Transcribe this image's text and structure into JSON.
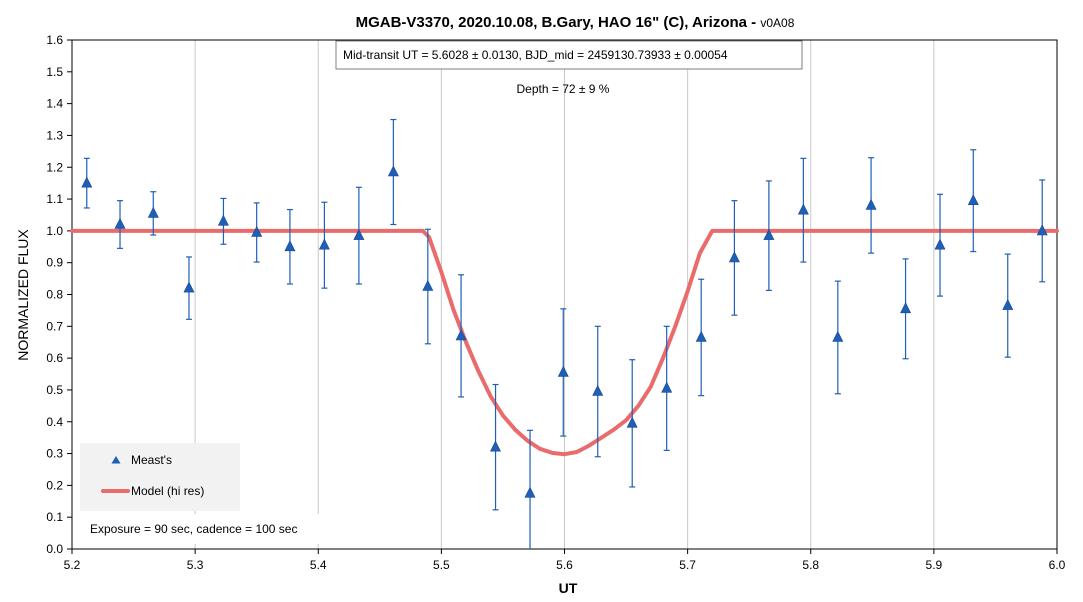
{
  "chart_data": {
    "type": "scatter",
    "title": "MGAB-V3370, 2020.10.08, B.Gary, HAO 16\" (C), Arizona - ",
    "title_version": "v0A08",
    "xlabel": "UT",
    "ylabel": "NORMALIZED FLUX",
    "xlim": [
      5.2,
      6.0
    ],
    "ylim": [
      0.0,
      1.6
    ],
    "x_ticks": [
      "5.2",
      "5.3",
      "5.4",
      "5.5",
      "5.6",
      "5.7",
      "5.8",
      "5.9",
      "6.0"
    ],
    "y_ticks": [
      "0.0",
      "0.1",
      "0.2",
      "0.3",
      "0.4",
      "0.5",
      "0.6",
      "0.7",
      "0.8",
      "0.9",
      "1.0",
      "1.1",
      "1.2",
      "1.3",
      "1.4",
      "1.5",
      "1.6"
    ],
    "grid": "vertical",
    "legend_position": "bottom-left",
    "annotations": {
      "transit": "Mid-transit UT = 5.6028 ± 0.0130, BJD_mid = 2459130.73933 ± 0.00054",
      "depth": "Depth = 72 ± 9 %",
      "exposure": "Exposure = 90 sec, cadence = 100 sec"
    },
    "series": [
      {
        "name": "Meast's",
        "kind": "scatter-errorbar",
        "color": "#1f5fb4",
        "marker": "triangle",
        "points": [
          {
            "x": 5.212,
            "y": 1.15,
            "err": 0.078
          },
          {
            "x": 5.239,
            "y": 1.02,
            "err": 0.075
          },
          {
            "x": 5.266,
            "y": 1.055,
            "err": 0.068
          },
          {
            "x": 5.295,
            "y": 0.82,
            "err": 0.098
          },
          {
            "x": 5.323,
            "y": 1.03,
            "err": 0.072
          },
          {
            "x": 5.35,
            "y": 0.995,
            "err": 0.093
          },
          {
            "x": 5.377,
            "y": 0.95,
            "err": 0.117
          },
          {
            "x": 5.405,
            "y": 0.955,
            "err": 0.135
          },
          {
            "x": 5.433,
            "y": 0.985,
            "err": 0.152
          },
          {
            "x": 5.461,
            "y": 1.185,
            "err": 0.165
          },
          {
            "x": 5.489,
            "y": 0.825,
            "err": 0.18
          },
          {
            "x": 5.516,
            "y": 0.67,
            "err": 0.192
          },
          {
            "x": 5.544,
            "y": 0.32,
            "err": 0.197
          },
          {
            "x": 5.572,
            "y": 0.175,
            "err": 0.198
          },
          {
            "x": 5.599,
            "y": 0.555,
            "err": 0.2
          },
          {
            "x": 5.627,
            "y": 0.495,
            "err": 0.205
          },
          {
            "x": 5.655,
            "y": 0.395,
            "err": 0.2
          },
          {
            "x": 5.683,
            "y": 0.505,
            "err": 0.195
          },
          {
            "x": 5.711,
            "y": 0.665,
            "err": 0.183
          },
          {
            "x": 5.738,
            "y": 0.915,
            "err": 0.18
          },
          {
            "x": 5.766,
            "y": 0.985,
            "err": 0.172
          },
          {
            "x": 5.794,
            "y": 1.065,
            "err": 0.163
          },
          {
            "x": 5.822,
            "y": 0.665,
            "err": 0.177
          },
          {
            "x": 5.849,
            "y": 1.08,
            "err": 0.15
          },
          {
            "x": 5.877,
            "y": 0.755,
            "err": 0.157
          },
          {
            "x": 5.905,
            "y": 0.955,
            "err": 0.16
          },
          {
            "x": 5.932,
            "y": 1.095,
            "err": 0.16
          },
          {
            "x": 5.96,
            "y": 0.765,
            "err": 0.162
          },
          {
            "x": 5.988,
            "y": 1.0,
            "err": 0.16
          }
        ]
      },
      {
        "name": "Model (hi res)",
        "kind": "line",
        "color": "#ea6b6b",
        "points": [
          {
            "x": 5.2,
            "y": 1.0
          },
          {
            "x": 5.485,
            "y": 1.0
          },
          {
            "x": 5.49,
            "y": 0.98
          },
          {
            "x": 5.5,
            "y": 0.87
          },
          {
            "x": 5.51,
            "y": 0.75
          },
          {
            "x": 5.52,
            "y": 0.65
          },
          {
            "x": 5.53,
            "y": 0.56
          },
          {
            "x": 5.54,
            "y": 0.48
          },
          {
            "x": 5.55,
            "y": 0.42
          },
          {
            "x": 5.56,
            "y": 0.375
          },
          {
            "x": 5.57,
            "y": 0.34
          },
          {
            "x": 5.58,
            "y": 0.315
          },
          {
            "x": 5.59,
            "y": 0.302
          },
          {
            "x": 5.6,
            "y": 0.298
          },
          {
            "x": 5.61,
            "y": 0.305
          },
          {
            "x": 5.62,
            "y": 0.325
          },
          {
            "x": 5.63,
            "y": 0.35
          },
          {
            "x": 5.64,
            "y": 0.375
          },
          {
            "x": 5.65,
            "y": 0.405
          },
          {
            "x": 5.66,
            "y": 0.45
          },
          {
            "x": 5.67,
            "y": 0.51
          },
          {
            "x": 5.68,
            "y": 0.6
          },
          {
            "x": 5.69,
            "y": 0.7
          },
          {
            "x": 5.7,
            "y": 0.81
          },
          {
            "x": 5.71,
            "y": 0.93
          },
          {
            "x": 5.72,
            "y": 1.0
          },
          {
            "x": 6.0,
            "y": 1.0
          }
        ]
      }
    ]
  }
}
